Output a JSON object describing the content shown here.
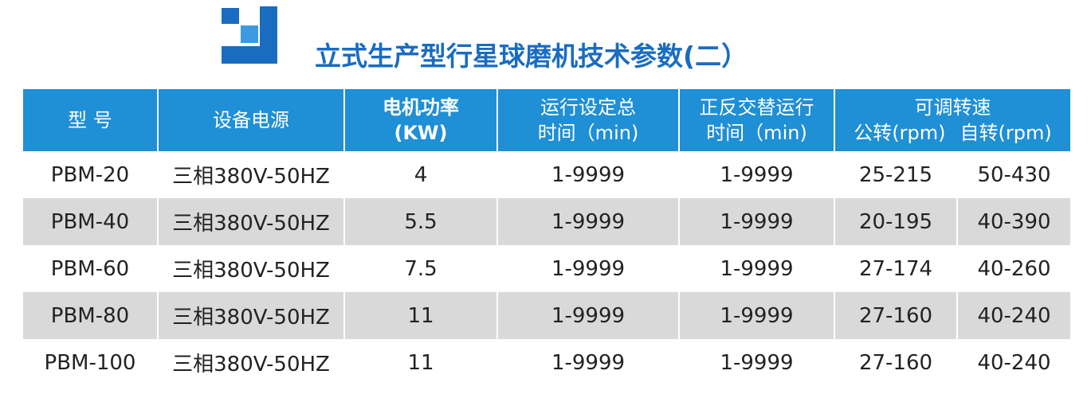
{
  "title": "立式生产型行星球磨机技术参数(二）",
  "table": {
    "header": [
      [
        "型 号"
      ],
      [
        "设备电源"
      ],
      [
        "电机功率",
        "(KW)"
      ],
      [
        "运行设定总",
        "时间（min)"
      ],
      [
        "正反交替运行",
        "时间（min)"
      ],
      [
        "可调转速"
      ]
    ],
    "subheader": [
      "公转(rpm)",
      "自转(rpm)"
    ],
    "rows": [
      [
        "PBM-20",
        "三相380V-50HZ",
        "4",
        "1-9999",
        "1-9999",
        "25-215",
        "50-430"
      ],
      [
        "PBM-40",
        "三相380V-50HZ",
        "5.5",
        "1-9999",
        "1-9999",
        "20-195",
        "40-390"
      ],
      [
        "PBM-60",
        "三相380V-50HZ",
        "7.5",
        "1-9999",
        "1-9999",
        "27-174",
        "40-260"
      ],
      [
        "PBM-80",
        "三相380V-50HZ",
        "11",
        "1-9999",
        "1-9999",
        "27-160",
        "40-240"
      ],
      [
        "PBM-100",
        "三相380V-50HZ",
        "11",
        "1-9999",
        "1-9999",
        "27-160",
        "40-240"
      ]
    ]
  }
}
